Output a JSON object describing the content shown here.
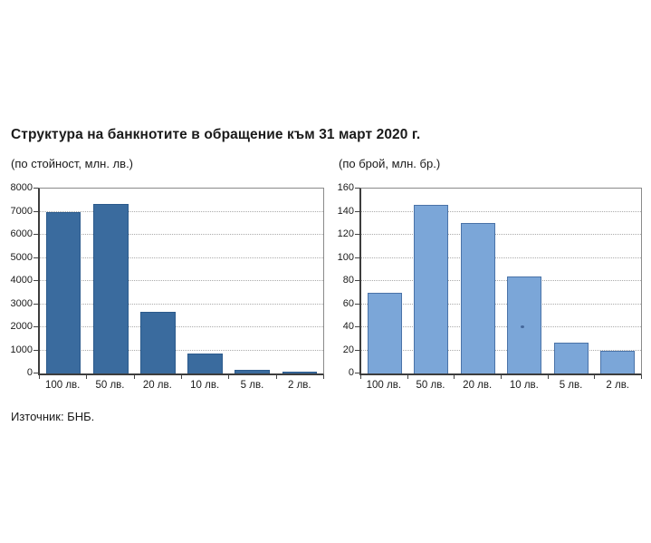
{
  "page": {
    "title": "Структура на банкнотите в обращение към 31 март 2020 г.",
    "source": "Източник: БНБ."
  },
  "chart_data": [
    {
      "type": "bar",
      "title": "(по стойност, млн. лв.)",
      "categories": [
        "100 лв.",
        "50 лв.",
        "20 лв.",
        "10 лв.",
        "5 лв.",
        "2 лв."
      ],
      "values": [
        7000,
        7350,
        2650,
        850,
        150,
        60
      ],
      "xlabel": "",
      "ylabel": "",
      "ylim": [
        0,
        8000
      ],
      "ytick_step": 1000,
      "grid": "dotted-horizontal",
      "legend": "none",
      "bar_fill": "#3a6b9e",
      "bar_border": "#2b5a8c",
      "bar_border_width": 1
    },
    {
      "type": "bar",
      "title": "(по брой, млн. бр.)",
      "categories": [
        "100 лв.",
        "50 лв.",
        "20 лв.",
        "10 лв.",
        "5 лв.",
        "2 лв."
      ],
      "values": [
        70,
        146,
        130,
        84,
        27,
        19.5
      ],
      "xlabel": "",
      "ylabel": "",
      "ylim": [
        0,
        160
      ],
      "ytick_step": 20,
      "grid": "dotted-horizontal",
      "legend": "none",
      "bar_fill": "#7ba6d8",
      "bar_border": "#4a73a8",
      "bar_border_width": 1.5,
      "artifact_dot": {
        "category_index": 3,
        "value": 40,
        "color": "#45689b"
      }
    }
  ]
}
